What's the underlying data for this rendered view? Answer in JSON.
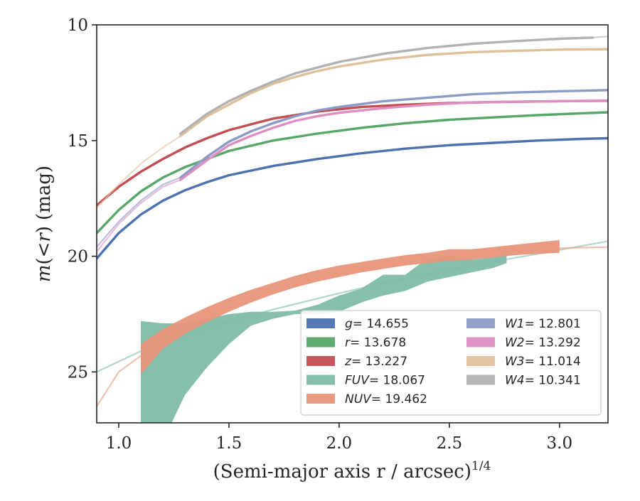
{
  "chart_data": {
    "type": "line",
    "xlabel": "(Semi-major axis r / arcsec)",
    "xlabel_sup": "1/4",
    "ylabel_parts": {
      "italic_m": "m",
      "paren_open": "(<",
      "italic_r": "r",
      "paren_close": ")",
      "unit": "(mag)"
    },
    "xlim": [
      0.9,
      3.22
    ],
    "ylim": [
      27.2,
      10.0
    ],
    "y_inverted": true,
    "grid": false,
    "legend_position": "lower-right",
    "x_ticks": [
      1.0,
      1.5,
      2.0,
      2.5,
      3.0
    ],
    "x_tick_labels": [
      "1.0",
      "1.5",
      "2.0",
      "2.5",
      "3.0"
    ],
    "y_ticks": [
      10,
      15,
      20,
      25
    ],
    "y_tick_labels": [
      "10",
      "15",
      "20",
      "25"
    ],
    "series": [
      {
        "name": "g = 14.655",
        "label_var": "g",
        "label_val": "= 14.655",
        "color": "#4c72b0",
        "kind": "line",
        "x": [
          0.9,
          1.0,
          1.1,
          1.2,
          1.3,
          1.4,
          1.5,
          1.7,
          1.9,
          2.1,
          2.3,
          2.5,
          2.7,
          2.9,
          3.1,
          3.22
        ],
        "y": [
          20.1,
          19.0,
          18.2,
          17.6,
          17.15,
          16.8,
          16.5,
          16.1,
          15.8,
          15.55,
          15.35,
          15.2,
          15.1,
          15.0,
          14.93,
          14.9
        ],
        "ext_x": [
          3.1,
          3.22
        ],
        "ext_y": [
          14.93,
          14.88
        ]
      },
      {
        "name": "r = 13.678",
        "label_var": "r",
        "label_val": "= 13.678",
        "color": "#55a868",
        "kind": "line",
        "x": [
          0.9,
          1.0,
          1.1,
          1.2,
          1.3,
          1.4,
          1.5,
          1.7,
          1.9,
          2.1,
          2.3,
          2.5,
          2.7,
          2.9,
          3.1,
          3.22
        ],
        "y": [
          19.0,
          18.0,
          17.2,
          16.6,
          16.15,
          15.8,
          15.45,
          15.0,
          14.7,
          14.45,
          14.25,
          14.1,
          14.0,
          13.9,
          13.82,
          13.78
        ],
        "ext_x": [
          3.1,
          3.22
        ],
        "ext_y": [
          13.82,
          13.76
        ]
      },
      {
        "name": "z = 13.227",
        "label_var": "z",
        "label_val": "= 13.227",
        "color": "#c44e52",
        "kind": "line",
        "x": [
          0.9,
          1.0,
          1.1,
          1.2,
          1.3,
          1.4,
          1.5,
          1.7,
          1.9,
          2.1,
          2.3,
          2.5,
          2.7,
          2.9,
          3.1,
          3.22
        ],
        "y": [
          17.8,
          17.0,
          16.35,
          15.8,
          15.3,
          14.9,
          14.55,
          14.05,
          13.75,
          13.55,
          13.45,
          13.38,
          13.34,
          13.31,
          13.29,
          13.28
        ],
        "ext_x": [
          3.1,
          3.22
        ],
        "ext_y": [
          13.29,
          13.27
        ]
      },
      {
        "name": "FUV = 18.067",
        "label_var": "FUV",
        "label_val": "= 18.067",
        "color": "#7fbca8",
        "kind": "band",
        "x": [
          1.1,
          1.2,
          1.3,
          1.4,
          1.5,
          1.6,
          1.7,
          1.8,
          1.9,
          2.0,
          2.1,
          2.2,
          2.3,
          2.4,
          2.5,
          2.6,
          2.7,
          2.76
        ],
        "y_upper": [
          22.8,
          22.9,
          22.9,
          22.7,
          22.5,
          22.4,
          22.4,
          22.35,
          22.1,
          21.7,
          21.4,
          20.8,
          20.8,
          20.1,
          20.0,
          20.15,
          20.05,
          19.9
        ],
        "y_lower": [
          28.5,
          28.0,
          26.0,
          24.8,
          23.8,
          23.0,
          22.7,
          22.5,
          22.5,
          22.4,
          22.0,
          21.7,
          21.5,
          21.1,
          20.9,
          20.7,
          20.5,
          20.3
        ],
        "ext_x": [
          0.9,
          1.1,
          1.4,
          1.7,
          2.0,
          2.3,
          2.6,
          2.9,
          3.22
        ],
        "ext_y": [
          25.0,
          24.1,
          23.1,
          22.3,
          21.6,
          20.95,
          20.4,
          19.9,
          19.35
        ]
      },
      {
        "name": "NUV = 19.462",
        "label_var": "NUV",
        "label_val": "= 19.462",
        "color": "#e8967a",
        "kind": "band",
        "x": [
          1.1,
          1.2,
          1.3,
          1.4,
          1.5,
          1.6,
          1.7,
          1.8,
          1.9,
          2.0,
          2.1,
          2.2,
          2.3,
          2.4,
          2.5,
          2.6,
          2.7,
          2.8,
          2.9,
          3.0
        ],
        "y_upper": [
          23.8,
          23.15,
          22.65,
          22.2,
          21.8,
          21.45,
          21.15,
          20.85,
          20.6,
          20.4,
          20.25,
          20.1,
          19.95,
          19.85,
          19.7,
          19.7,
          19.6,
          19.5,
          19.4,
          19.3
        ],
        "y_lower": [
          25.1,
          24.0,
          23.35,
          22.85,
          22.4,
          22.0,
          21.65,
          21.35,
          21.1,
          20.9,
          20.7,
          20.55,
          20.4,
          20.3,
          20.2,
          20.15,
          20.05,
          19.95,
          19.9,
          19.85
        ],
        "ext_x": [
          0.9,
          1.0,
          1.1,
          1.2,
          1.4,
          1.7,
          2.0,
          2.3,
          2.6,
          3.0,
          3.22
        ],
        "ext_y": [
          26.5,
          25.0,
          24.3,
          23.6,
          22.6,
          21.5,
          20.7,
          20.2,
          19.9,
          19.65,
          19.6
        ]
      },
      {
        "name": "W1 = 12.801",
        "label_var": "W1",
        "label_val": "= 12.801",
        "color": "#8c9ac6",
        "kind": "line",
        "x": [
          1.28,
          1.4,
          1.5,
          1.6,
          1.7,
          1.8,
          1.9,
          2.0,
          2.2,
          2.4,
          2.6,
          2.8,
          3.0,
          3.22
        ],
        "y": [
          16.6,
          15.7,
          15.05,
          14.6,
          14.25,
          13.95,
          13.7,
          13.55,
          13.3,
          13.15,
          13.0,
          12.92,
          12.87,
          12.82
        ],
        "ext_x": [
          0.9,
          1.0,
          1.1,
          1.2,
          1.28
        ],
        "ext_y": [
          19.6,
          18.5,
          17.6,
          16.9,
          16.6
        ]
      },
      {
        "name": "W2 = 13.292",
        "label_var": "W2",
        "label_val": "= 13.292",
        "color": "#dd8ec3",
        "kind": "line",
        "x": [
          1.28,
          1.4,
          1.5,
          1.6,
          1.7,
          1.8,
          1.9,
          2.0,
          2.2,
          2.4,
          2.6,
          2.8,
          3.0,
          3.22
        ],
        "y": [
          16.7,
          15.85,
          15.2,
          14.8,
          14.45,
          14.15,
          13.95,
          13.8,
          13.6,
          13.45,
          13.35,
          13.32,
          13.3,
          13.29
        ],
        "ext_x": [
          0.9,
          1.0,
          1.1,
          1.2,
          1.28
        ],
        "ext_y": [
          19.8,
          18.6,
          17.7,
          17.0,
          16.7
        ]
      },
      {
        "name": "W3 = 11.014",
        "label_var": "W3",
        "label_val": "= 11.014",
        "color": "#dfc29b",
        "kind": "line",
        "x": [
          1.28,
          1.4,
          1.5,
          1.6,
          1.7,
          1.8,
          1.9,
          2.0,
          2.2,
          2.4,
          2.6,
          2.8,
          3.0,
          3.22
        ],
        "y": [
          14.8,
          13.95,
          13.45,
          12.95,
          12.55,
          12.25,
          12.0,
          11.8,
          11.5,
          11.3,
          11.18,
          11.12,
          11.07,
          11.05
        ],
        "ext_x": [
          0.9,
          1.0,
          1.1,
          1.2,
          1.28
        ],
        "ext_y": [
          17.9,
          16.9,
          16.0,
          15.3,
          14.8
        ]
      },
      {
        "name": "W4 = 10.341",
        "label_var": "W4",
        "label_val": "= 10.341",
        "color": "#b2b2b2",
        "kind": "line",
        "x": [
          1.28,
          1.4,
          1.5,
          1.6,
          1.7,
          1.8,
          1.9,
          2.0,
          2.2,
          2.4,
          2.6,
          2.8,
          3.0,
          3.15
        ],
        "y": [
          14.7,
          13.85,
          13.3,
          12.85,
          12.45,
          12.1,
          11.85,
          11.6,
          11.25,
          11.0,
          10.82,
          10.7,
          10.6,
          10.55
        ],
        "ext_x": [
          3.15,
          3.22
        ],
        "ext_y": [
          10.55,
          10.5
        ]
      }
    ]
  }
}
